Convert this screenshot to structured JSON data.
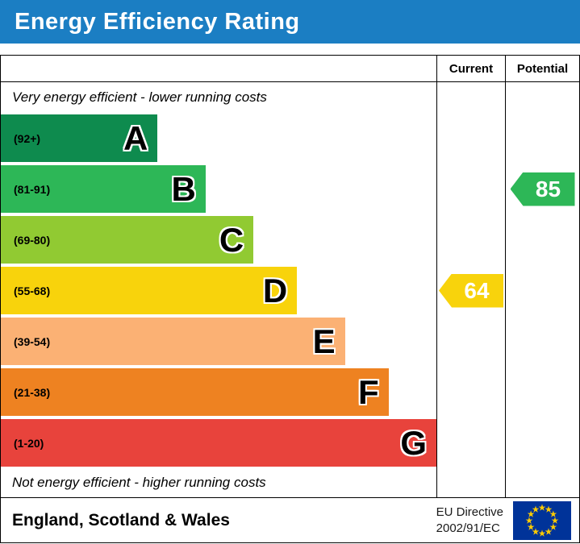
{
  "header": {
    "title": "Energy Efficiency Rating",
    "bg_color": "#1b7ec3",
    "text_color": "#ffffff"
  },
  "table": {
    "current_label": "Current",
    "potential_label": "Potential"
  },
  "notes": {
    "top": "Very energy efficient - lower running costs",
    "bottom": "Not energy efficient - higher running costs"
  },
  "bands": [
    {
      "letter": "A",
      "range": "(92+)",
      "color": "#0e8b4e",
      "width_pct": 36
    },
    {
      "letter": "B",
      "range": "(81-91)",
      "color": "#2db757",
      "width_pct": 47
    },
    {
      "letter": "C",
      "range": "(69-80)",
      "color": "#91ca32",
      "width_pct": 58
    },
    {
      "letter": "D",
      "range": "(55-68)",
      "color": "#f8d30c",
      "width_pct": 68
    },
    {
      "letter": "E",
      "range": "(39-54)",
      "color": "#fbb174",
      "width_pct": 79
    },
    {
      "letter": "F",
      "range": "(21-38)",
      "color": "#ee8221",
      "width_pct": 89
    },
    {
      "letter": "G",
      "range": "(1-20)",
      "color": "#e8433c",
      "width_pct": 100
    }
  ],
  "current": {
    "value": "64",
    "color": "#f8d30c"
  },
  "potential": {
    "value": "85",
    "color": "#2db757"
  },
  "footer": {
    "region": "England, Scotland & Wales",
    "directive_line1": "EU Directive",
    "directive_line2": "2002/91/EC"
  },
  "eu_flag": {
    "bg": "#003399",
    "star": "#ffcc00"
  },
  "chart_data": {
    "type": "bar",
    "title": "Energy Efficiency Rating",
    "categories": [
      "A (92+)",
      "B (81-91)",
      "C (69-80)",
      "D (55-68)",
      "E (39-54)",
      "F (21-38)",
      "G (1-20)"
    ],
    "values": [
      36,
      47,
      58,
      68,
      79,
      89,
      100
    ],
    "value_meaning": "relative bar width percent",
    "annotations": {
      "current": 64,
      "current_band": "D",
      "potential": 85,
      "potential_band": "B"
    },
    "legend_position": "none",
    "top_note": "Very energy efficient - lower running costs",
    "bottom_note": "Not energy efficient - higher running costs"
  }
}
